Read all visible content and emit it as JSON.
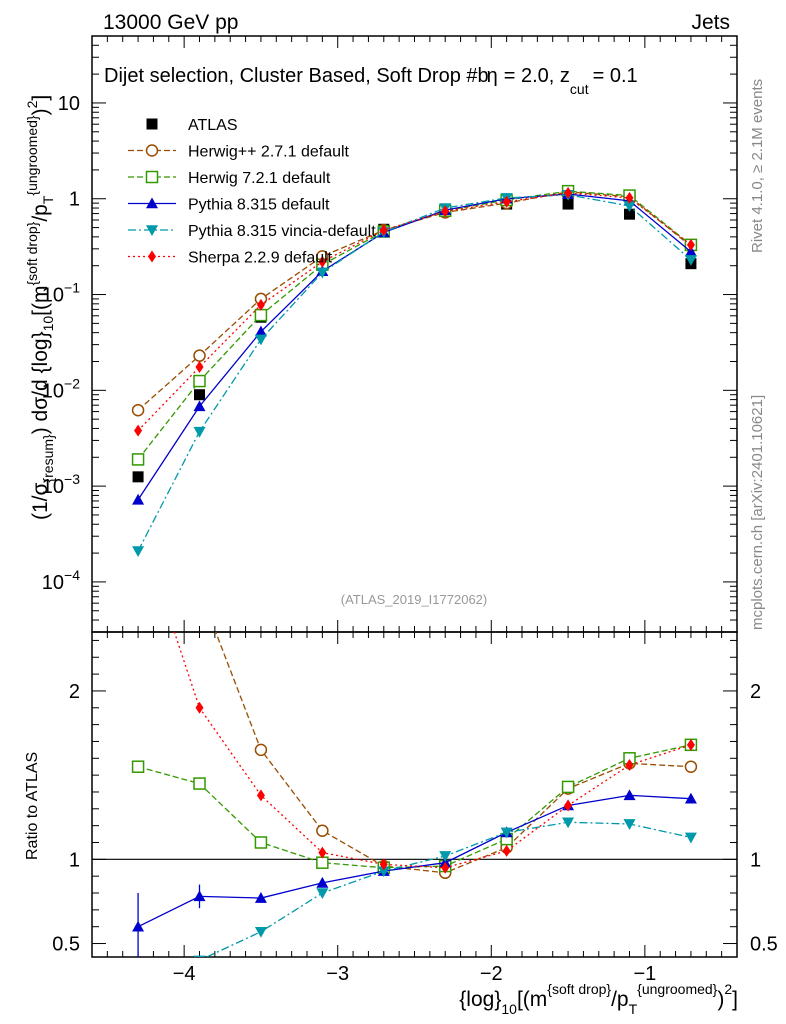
{
  "header": {
    "left": "13000 GeV pp",
    "right": "Jets",
    "selection": "Dijet selection, Cluster Based, Soft Drop #b",
    "beta": "= 2.0, z",
    "zcut_sub": "cut",
    "zcut_val": "= 0.1",
    "beta_glyph": "η",
    "analysis_id": "(ATLAS_2019_I1772062)"
  },
  "side_labels": {
    "rivet": "Rivet 4.1.0, ≥ 2.1M events",
    "mcplots": "mcplots.cern.ch [arXiv:2401.10621]"
  },
  "axes": {
    "main_ylabel_pre": "(1/σ",
    "main_ylabel_sub": "{resum}",
    "main_ylabel_mid": ") dσ/d {log}",
    "main_ylabel_sub2": "10",
    "main_ylabel_mid2": "[(m",
    "main_ylabel_sup": "{soft drop}",
    "main_ylabel_mid3": "/p",
    "main_ylabel_sub3": "T",
    "main_ylabel_sup2": "{ungroomed}",
    "main_ylabel_end": ")",
    "main_ylabel_sup3": "2",
    "main_ylabel_close": "]",
    "ratio_ylabel": "Ratio to ATLAS",
    "xlabel_pre": "{log}",
    "xlabel_sub": "10",
    "xlabel_mid": "[(m",
    "xlabel_sup": "{soft drop}",
    "xlabel_mid2": "/p",
    "xlabel_sub2": "T",
    "xlabel_sup2": "{ungroomed}",
    "xlabel_end": ")",
    "xlabel_sup3": "2",
    "xlabel_close": "]",
    "xticks": [
      {
        "value": -4,
        "label": "−4"
      },
      {
        "value": -3,
        "label": "−3"
      },
      {
        "value": -2,
        "label": "−2"
      },
      {
        "value": -1,
        "label": "−1"
      }
    ],
    "main_yticks": [
      {
        "value": 0.0001,
        "base": "10",
        "exp": "−4"
      },
      {
        "value": 0.001,
        "base": "10",
        "exp": "−3"
      },
      {
        "value": 0.01,
        "base": "10",
        "exp": "−2"
      },
      {
        "value": 0.1,
        "base": "10",
        "exp": "−1"
      },
      {
        "value": 1,
        "base": "1",
        "exp": ""
      },
      {
        "value": 10,
        "base": "10",
        "exp": ""
      }
    ],
    "ratio_yticks_left": [
      {
        "value": 0.5,
        "label": "0.5"
      },
      {
        "value": 1,
        "label": "1"
      },
      {
        "value": 2,
        "label": "2"
      }
    ],
    "ratio_yticks_right": [
      {
        "value": 0.5,
        "label": "0.5"
      },
      {
        "value": 1,
        "label": "1"
      },
      {
        "value": 2,
        "label": "2"
      }
    ]
  },
  "chart_data": {
    "type": "line",
    "x_scale": "linear",
    "main_y_scale": "log",
    "xlim": [
      -4.6,
      -0.4
    ],
    "main_ylim": [
      3e-05,
      50
    ],
    "ratio_ylim": [
      0.42,
      2.35
    ],
    "x": [
      -4.3,
      -3.9,
      -3.5,
      -3.1,
      -2.7,
      -2.3,
      -1.9,
      -1.5,
      -1.1,
      -0.7
    ],
    "data": {
      "name": "ATLAS",
      "values": [
        0.00125,
        0.009,
        0.058,
        0.21,
        0.48,
        0.78,
        0.88,
        0.88,
        0.69,
        0.21
      ]
    },
    "series": [
      {
        "name": "Herwig++ 2.7.1 default",
        "color": "#994c00",
        "dash": "6,3",
        "marker": "circle-open",
        "main": [
          0.0062,
          0.023,
          0.09,
          0.25,
          0.47,
          0.72,
          0.9,
          1.18,
          1.05,
          0.32
        ],
        "ratio": [
          5.0,
          2.6,
          1.65,
          1.17,
          0.96,
          0.92,
          1.07,
          1.42,
          1.57,
          1.55
        ]
      },
      {
        "name": "Herwig 7.2.1 default",
        "color": "#339900",
        "dash": "6,3",
        "marker": "square-open",
        "main": [
          0.0019,
          0.0125,
          0.061,
          0.205,
          0.455,
          0.75,
          0.97,
          1.2,
          1.08,
          0.33
        ],
        "ratio": [
          1.55,
          1.45,
          1.1,
          0.98,
          0.95,
          0.96,
          1.12,
          1.43,
          1.6,
          1.68
        ]
      },
      {
        "name": "Pythia 8.315 default",
        "color": "#0000cc",
        "dash": "",
        "marker": "triangle-up",
        "main": [
          0.00072,
          0.0068,
          0.041,
          0.175,
          0.445,
          0.76,
          1.0,
          1.12,
          0.95,
          0.28
        ],
        "ratio": [
          0.6,
          0.78,
          0.77,
          0.86,
          0.93,
          0.98,
          1.16,
          1.32,
          1.38,
          1.36
        ],
        "ratio_err": [
          0.2,
          0.07,
          0.02,
          0.0,
          0.0,
          0.0,
          0.0,
          0.0,
          0.0,
          0.0
        ]
      },
      {
        "name": "Pythia 8.315 vincia-default",
        "color": "#0099aa",
        "dash": "8,3,2,3",
        "marker": "triangle-down",
        "main": [
          0.00021,
          0.0037,
          0.034,
          0.17,
          0.45,
          0.8,
          1.02,
          1.1,
          0.84,
          0.23
        ],
        "ratio": [
          0.18,
          0.4,
          0.57,
          0.8,
          0.93,
          1.02,
          1.16,
          1.22,
          1.21,
          1.13
        ]
      },
      {
        "name": "Sherpa 2.2.9 default",
        "color": "#ff0000",
        "dash": "2,3",
        "marker": "diamond",
        "main": [
          0.0038,
          0.0175,
          0.078,
          0.22,
          0.47,
          0.74,
          0.93,
          1.15,
          1.02,
          0.33
        ],
        "ratio": [
          3.0,
          1.9,
          1.38,
          1.04,
          0.97,
          0.95,
          1.05,
          1.32,
          1.56,
          1.68
        ]
      }
    ]
  }
}
